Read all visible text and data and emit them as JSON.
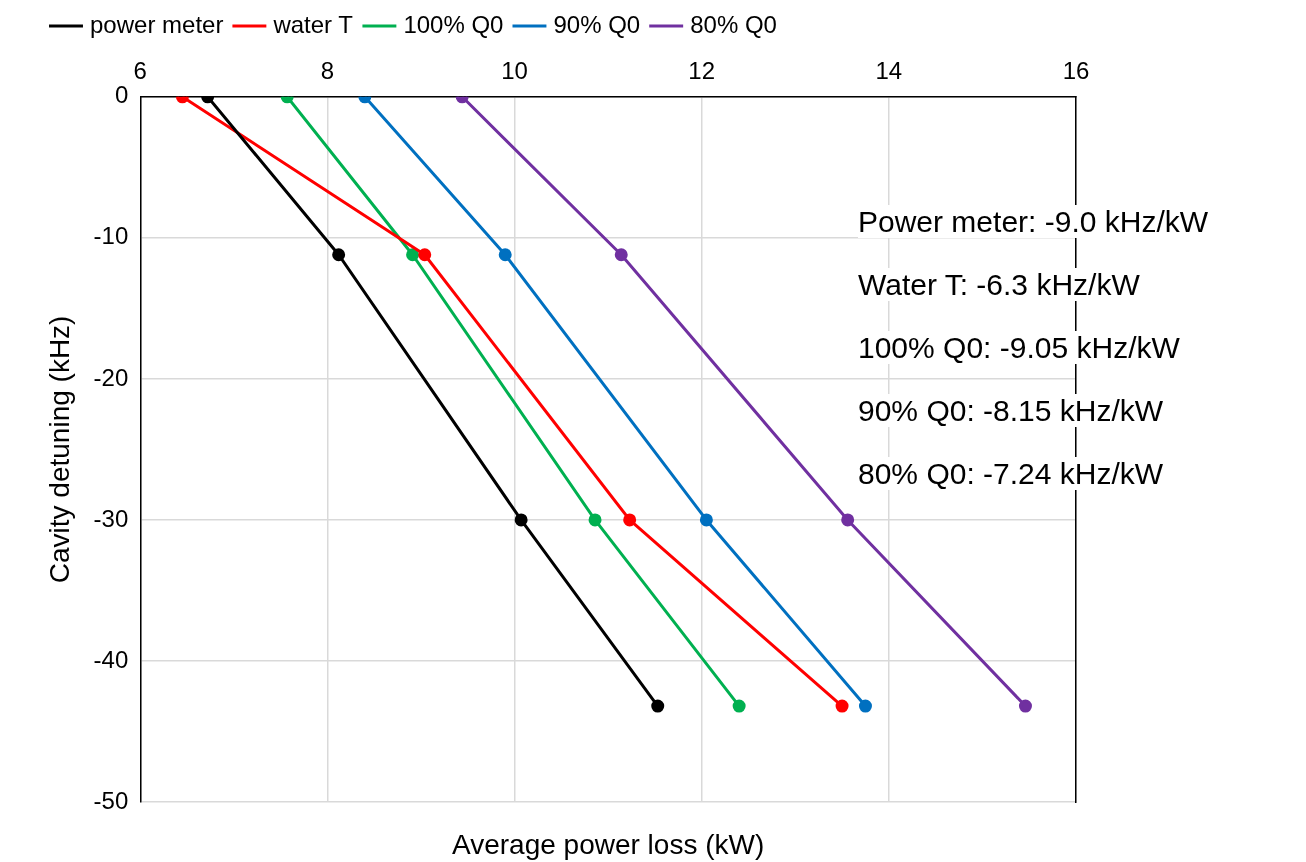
{
  "chart_data": {
    "type": "line",
    "xlabel": "Average power loss (kW)",
    "ylabel": "Cavity detuning (kHz)",
    "xlim": [
      6,
      16
    ],
    "xticks": [
      6,
      8,
      10,
      12,
      14,
      16
    ],
    "ylim": [
      -50,
      0
    ],
    "yticks": [
      -50,
      -40,
      -30,
      -20,
      -10,
      0
    ],
    "grid": true,
    "legend": "top",
    "marker": "circle",
    "line_style": "solid",
    "annotations": [
      "Power meter: -9.0 kHz/kW",
      "Water T: -6.3 kHz/kW",
      "100% Q0: -9.05 kHz/kW",
      "90% Q0: -8.15 kHz/kW",
      "80% Q0: -7.24 kHz/kW"
    ],
    "series": [
      {
        "name": "power meter",
        "color": "#000000",
        "x": [
          6.72,
          8.12,
          10.07,
          11.53
        ],
        "values": [
          0,
          -11.2,
          -30,
          -43.2
        ]
      },
      {
        "name": "water T",
        "color": "#ff0000",
        "x": [
          6.45,
          9.04,
          11.23,
          13.5
        ],
        "values": [
          0,
          -11.2,
          -30,
          -43.2
        ]
      },
      {
        "name": "100% Q0",
        "color": "#00b050",
        "x": [
          7.57,
          8.91,
          10.86,
          12.4
        ],
        "values": [
          0,
          -11.2,
          -30,
          -43.2
        ]
      },
      {
        "name": "90% Q0",
        "color": "#0070c0",
        "x": [
          8.4,
          9.9,
          12.05,
          13.75
        ],
        "values": [
          0,
          -11.2,
          -30,
          -43.2
        ]
      },
      {
        "name": "80% Q0",
        "color": "#7030a0",
        "x": [
          9.44,
          11.14,
          13.56,
          15.46
        ],
        "values": [
          0,
          -11.2,
          -30,
          -43.2
        ]
      }
    ]
  }
}
